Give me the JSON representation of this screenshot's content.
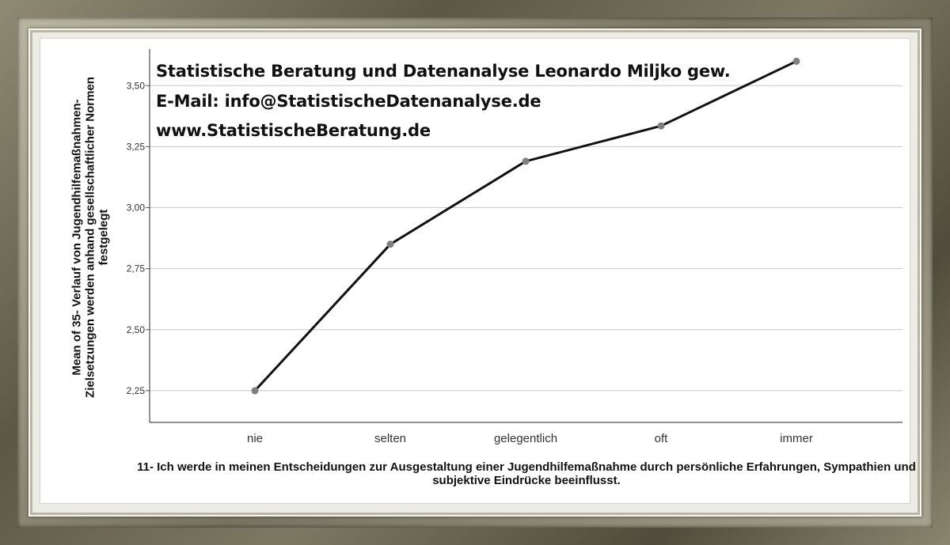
{
  "watermark": {
    "line1": "Statistische Beratung und Datenanalyse Leonardo Miljko gew.",
    "line2": "E-Mail: info@StatistischeDatenanalyse.de",
    "line3": "www.StatistischeBeratung.de"
  },
  "colors": {
    "line": "#111111",
    "marker": "#808080",
    "grid": "#c8c8c8",
    "axis": "#4d4d4d"
  },
  "chart_data": {
    "type": "line",
    "categories": [
      "nie",
      "selten",
      "gelegentlich",
      "oft",
      "immer"
    ],
    "values": [
      2.25,
      2.85,
      3.19,
      3.335,
      3.6
    ],
    "xlabel": "11- Ich werde in meinen Entscheidungen zur Ausgestaltung einer Jugendhilfemaßnahme durch persönliche Erfahrungen, Sympathien und subjektive Eindrücke beeinflusst.",
    "ylabel": "Mean of 35- Verlauf von Jugendhilfemaßnahmen-Zielsetzungen werden anhand gesellschaftlicher Normen festgelegt",
    "ylim": [
      2.12,
      3.65
    ],
    "yticks": [
      2.25,
      2.5,
      2.75,
      3.0,
      3.25,
      3.5
    ],
    "ytick_labels": [
      "2,25",
      "2,50",
      "2,75",
      "3,00",
      "3,25",
      "3,50"
    ],
    "grid": true,
    "legend": "none"
  }
}
